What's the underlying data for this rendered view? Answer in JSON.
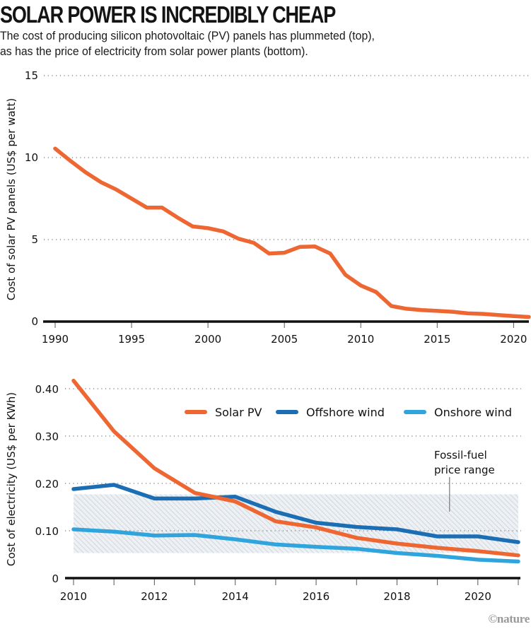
{
  "header": {
    "title": "SOLAR POWER IS INCREDIBLY CHEAP",
    "subtitle_line1": "The cost of producing silicon photovoltaic (PV) panels has plummeted (top),",
    "subtitle_line2": "as has the price of electricity from solar power plants (bottom)."
  },
  "credit": "©nature",
  "colors": {
    "solar": "#ee6631",
    "offshore": "#1b6eb4",
    "onshore": "#30a4dc",
    "axis": "#111111",
    "grid": "#555555",
    "band": "#d4dae2"
  },
  "chart_data": [
    {
      "type": "line",
      "title": "Cost of solar PV panels",
      "xlabel": "",
      "ylabel": "Cost of solar PV panels (US$ per watt)",
      "xlim": [
        1990,
        2021
      ],
      "ylim": [
        0,
        15
      ],
      "xticks": [
        1990,
        1995,
        2000,
        2005,
        2010,
        2015,
        2020
      ],
      "xtick_labels": [
        "1990",
        "1995",
        "2000",
        "2005",
        "2010",
        "2015",
        "2020"
      ],
      "yticks": [
        0,
        5,
        10,
        15
      ],
      "ytick_labels": [
        "0",
        "5",
        "10",
        "15"
      ],
      "grid": "horizontal dotted",
      "x": [
        1990,
        1991,
        1992,
        1993,
        1994,
        1995,
        1996,
        1997,
        1998,
        1999,
        2000,
        2001,
        2002,
        2003,
        2004,
        2005,
        2006,
        2007,
        2008,
        2009,
        2010,
        2011,
        2012,
        2013,
        2014,
        2015,
        2016,
        2017,
        2018,
        2019,
        2020,
        2021
      ],
      "series": [
        {
          "name": "Solar PV panels",
          "color_key": "solar",
          "values": [
            10.55,
            9.8,
            9.1,
            8.5,
            8.05,
            7.5,
            6.95,
            6.95,
            6.35,
            5.8,
            5.7,
            5.5,
            5.05,
            4.8,
            4.15,
            4.2,
            4.55,
            4.58,
            4.15,
            2.85,
            2.2,
            1.8,
            0.95,
            0.78,
            0.7,
            0.65,
            0.6,
            0.5,
            0.47,
            0.4,
            0.33,
            0.28
          ]
        }
      ]
    },
    {
      "type": "line",
      "title": "Cost of electricity",
      "xlabel": "",
      "ylabel": "Cost of electricity (US$ per KWh)",
      "xlim": [
        2010,
        2021
      ],
      "ylim": [
        0,
        0.4
      ],
      "xticks": [
        2010,
        2011,
        2012,
        2013,
        2014,
        2015,
        2016,
        2017,
        2018,
        2019,
        2020,
        2021
      ],
      "xtick_labels": [
        "2010",
        "",
        "2012",
        "",
        "2014",
        "",
        "2016",
        "",
        "2018",
        "",
        "2020",
        ""
      ],
      "yticks": [
        0,
        0.1,
        0.2,
        0.3,
        0.4
      ],
      "ytick_labels": [
        "0",
        "0.10",
        "0.20",
        "0.30",
        "0.40"
      ],
      "grid": "horizontal dotted",
      "legend_position": "top-right",
      "x": [
        2010,
        2011,
        2012,
        2013,
        2014,
        2015,
        2016,
        2017,
        2018,
        2019,
        2020,
        2021
      ],
      "series": [
        {
          "name": "Solar PV",
          "color_key": "solar",
          "values": [
            0.417,
            0.31,
            0.232,
            0.18,
            0.162,
            0.12,
            0.107,
            0.085,
            0.073,
            0.064,
            0.057,
            0.048
          ]
        },
        {
          "name": "Offshore wind",
          "color_key": "offshore",
          "values": [
            0.188,
            0.197,
            0.168,
            0.168,
            0.172,
            0.14,
            0.117,
            0.108,
            0.103,
            0.088,
            0.088,
            0.076
          ]
        },
        {
          "name": "Onshore wind",
          "color_key": "onshore",
          "values": [
            0.103,
            0.098,
            0.09,
            0.091,
            0.082,
            0.071,
            0.066,
            0.062,
            0.053,
            0.047,
            0.039,
            0.035
          ]
        }
      ],
      "band": {
        "name": "Fossil-fuel price range",
        "low": 0.053,
        "high": 0.177
      },
      "annotation": {
        "line1": "Fossil-fuel",
        "line2": "price range",
        "x": 2019.3
      }
    }
  ]
}
